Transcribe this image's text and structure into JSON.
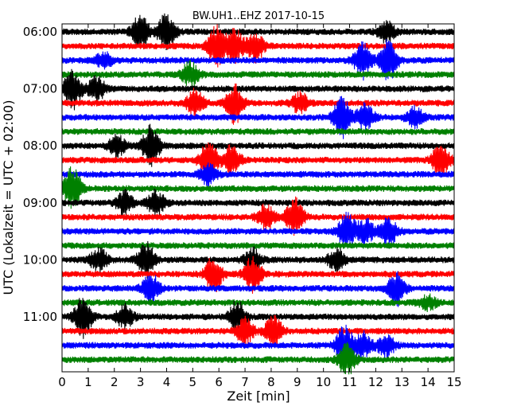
{
  "chart_data": {
    "type": "line",
    "chart_kind": "dayplot-seismogram",
    "title": "BW.UH1..EHZ 2017-10-15",
    "xlabel": "Zeit  [min]",
    "ylabel": "UTC (Lokalzeit = UTC + 02:00)",
    "xlim": [
      0,
      15
    ],
    "x_ticks": [
      "0",
      "1",
      "2",
      "3",
      "4",
      "5",
      "6",
      "7",
      "8",
      "9",
      "10",
      "11",
      "12",
      "13",
      "14",
      "15"
    ],
    "y_ticks": [
      "06:00",
      "07:00",
      "08:00",
      "09:00",
      "10:00",
      "11:00"
    ],
    "minutes_per_line": 15,
    "grid": false,
    "legend": "none",
    "color_cycle": [
      "#000000",
      "#ff0000",
      "#0000ff",
      "#008000"
    ],
    "traces": [
      {
        "start": "06:00",
        "bursts": [
          {
            "x": 3.0,
            "amp": 1.6
          },
          {
            "x": 4.0,
            "amp": 1.7
          },
          {
            "x": 12.4,
            "amp": 0.9
          }
        ]
      },
      {
        "start": "06:15",
        "bursts": [
          {
            "x": 5.9,
            "amp": 1.9
          },
          {
            "x": 6.6,
            "amp": 1.6
          },
          {
            "x": 7.4,
            "amp": 1.4
          }
        ]
      },
      {
        "start": "06:30",
        "bursts": [
          {
            "x": 1.6,
            "amp": 0.7
          },
          {
            "x": 11.5,
            "amp": 1.6
          },
          {
            "x": 12.5,
            "amp": 2.0
          }
        ]
      },
      {
        "start": "06:45",
        "bursts": [
          {
            "x": 4.9,
            "amp": 1.1
          }
        ]
      },
      {
        "start": "07:00",
        "bursts": [
          {
            "x": 0.4,
            "amp": 1.8
          },
          {
            "x": 1.3,
            "amp": 1.2
          }
        ]
      },
      {
        "start": "07:15",
        "bursts": [
          {
            "x": 5.1,
            "amp": 1.2
          },
          {
            "x": 6.6,
            "amp": 1.9
          },
          {
            "x": 9.1,
            "amp": 0.9
          }
        ]
      },
      {
        "start": "07:30",
        "bursts": [
          {
            "x": 10.7,
            "amp": 1.9
          },
          {
            "x": 11.6,
            "amp": 1.2
          },
          {
            "x": 13.5,
            "amp": 0.9
          }
        ]
      },
      {
        "start": "07:45",
        "bursts": []
      },
      {
        "start": "08:00",
        "bursts": [
          {
            "x": 2.1,
            "amp": 0.9
          },
          {
            "x": 3.4,
            "amp": 1.8
          }
        ]
      },
      {
        "start": "08:15",
        "bursts": [
          {
            "x": 5.6,
            "amp": 2.0
          },
          {
            "x": 6.5,
            "amp": 1.4
          },
          {
            "x": 14.5,
            "amp": 1.6
          }
        ]
      },
      {
        "start": "08:30",
        "bursts": [
          {
            "x": 5.6,
            "amp": 0.9
          }
        ]
      },
      {
        "start": "08:45",
        "bursts": [
          {
            "x": 0.4,
            "amp": 1.9
          }
        ]
      },
      {
        "start": "09:00",
        "bursts": [
          {
            "x": 2.4,
            "amp": 1.1
          },
          {
            "x": 3.6,
            "amp": 1.1
          }
        ]
      },
      {
        "start": "09:15",
        "bursts": [
          {
            "x": 7.8,
            "amp": 1.1
          },
          {
            "x": 8.9,
            "amp": 1.7
          }
        ]
      },
      {
        "start": "09:30",
        "bursts": [
          {
            "x": 10.9,
            "amp": 1.6
          },
          {
            "x": 11.6,
            "amp": 1.1
          },
          {
            "x": 12.5,
            "amp": 1.3
          }
        ]
      },
      {
        "start": "09:45",
        "bursts": []
      },
      {
        "start": "10:00",
        "bursts": [
          {
            "x": 1.4,
            "amp": 1.1
          },
          {
            "x": 3.2,
            "amp": 1.6
          },
          {
            "x": 7.3,
            "amp": 1.0
          },
          {
            "x": 10.5,
            "amp": 1.0
          }
        ]
      },
      {
        "start": "10:15",
        "bursts": [
          {
            "x": 5.8,
            "amp": 1.6
          },
          {
            "x": 7.3,
            "amp": 1.6
          }
        ]
      },
      {
        "start": "10:30",
        "bursts": [
          {
            "x": 3.4,
            "amp": 1.3
          },
          {
            "x": 12.8,
            "amp": 1.5
          }
        ]
      },
      {
        "start": "10:45",
        "bursts": [
          {
            "x": 14.0,
            "amp": 0.6
          }
        ]
      },
      {
        "start": "11:00",
        "bursts": [
          {
            "x": 0.8,
            "amp": 1.9
          },
          {
            "x": 2.4,
            "amp": 1.1
          },
          {
            "x": 6.7,
            "amp": 1.4
          }
        ]
      },
      {
        "start": "11:15",
        "bursts": [
          {
            "x": 7.0,
            "amp": 1.2
          },
          {
            "x": 8.1,
            "amp": 1.5
          }
        ]
      },
      {
        "start": "11:30",
        "bursts": [
          {
            "x": 10.8,
            "amp": 1.7
          },
          {
            "x": 11.5,
            "amp": 1.2
          },
          {
            "x": 12.4,
            "amp": 1.0
          }
        ]
      },
      {
        "start": "11:45",
        "bursts": [
          {
            "x": 10.9,
            "amp": 1.4
          }
        ]
      }
    ]
  }
}
